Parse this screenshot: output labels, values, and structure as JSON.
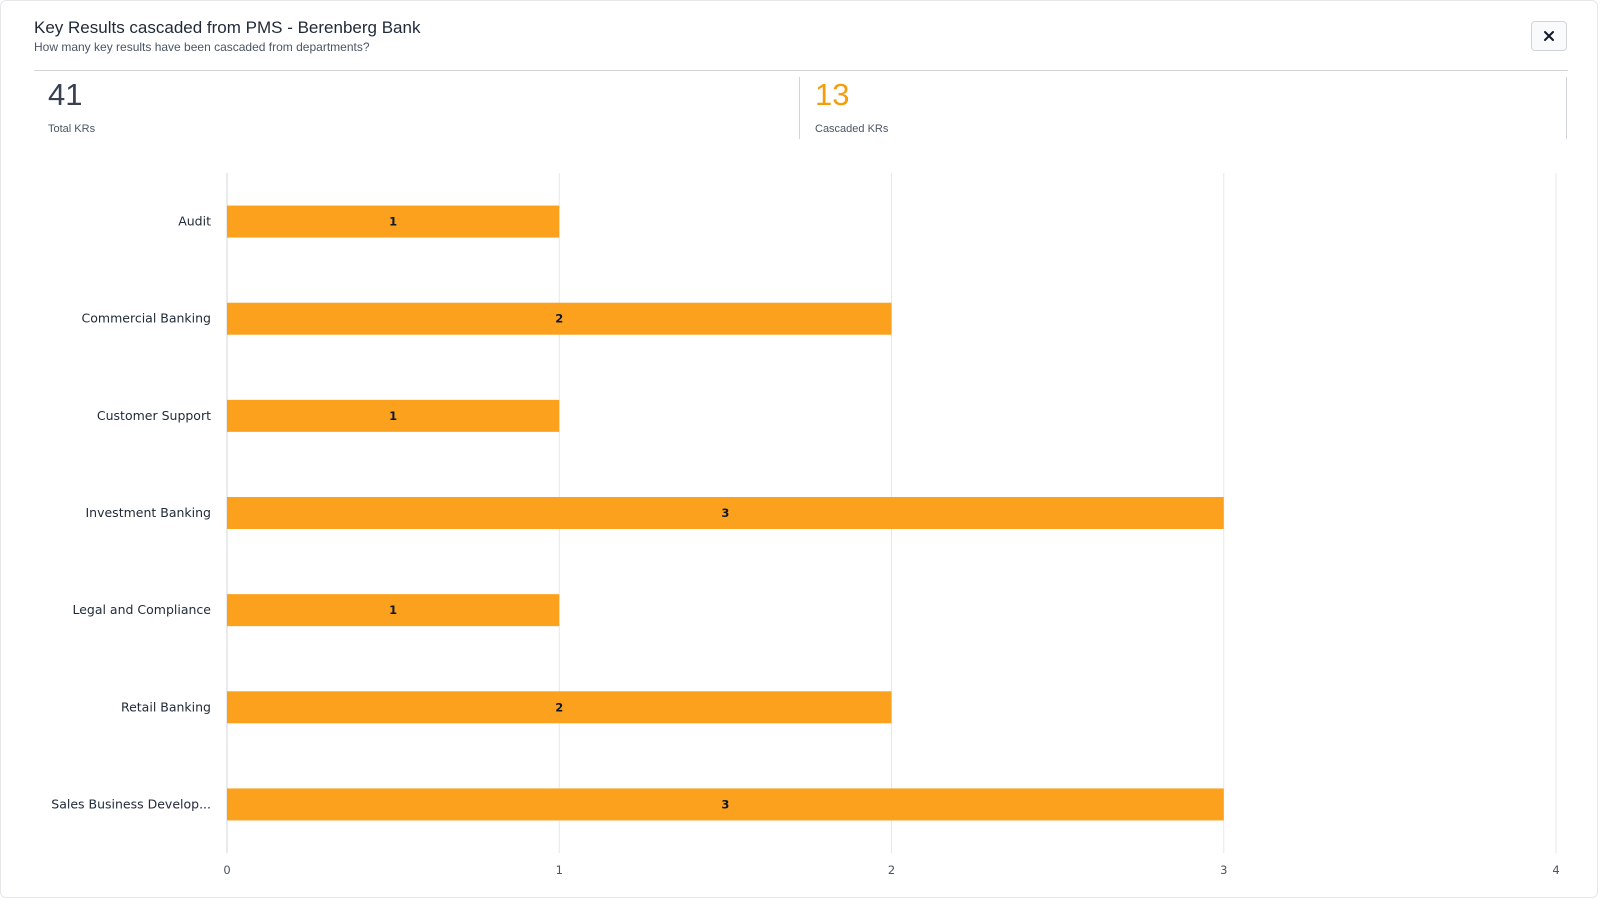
{
  "header": {
    "title": "Key Results cascaded from PMS - Berenberg Bank",
    "subtitle": "How many key results have been cascaded from departments?",
    "close_icon": "close-icon"
  },
  "stats": [
    {
      "value": "41",
      "label": "Total KRs"
    },
    {
      "value": "13",
      "label": "Cascaded KRs"
    }
  ],
  "colors": {
    "bar": "#fba11e",
    "accent": "#f59e0b",
    "grid": "#e5e7eb"
  },
  "chart_data": {
    "type": "bar",
    "orientation": "horizontal",
    "categories": [
      "Audit",
      "Commercial Banking",
      "Customer Support",
      "Investment Banking",
      "Legal and Compliance",
      "Retail Banking",
      "Sales Business Develop..."
    ],
    "values": [
      1,
      2,
      1,
      3,
      1,
      2,
      3
    ],
    "xlim": [
      0,
      4
    ],
    "xticks": [
      "0",
      "1",
      "2",
      "3",
      "4"
    ],
    "grid": true,
    "data_labels": true
  }
}
